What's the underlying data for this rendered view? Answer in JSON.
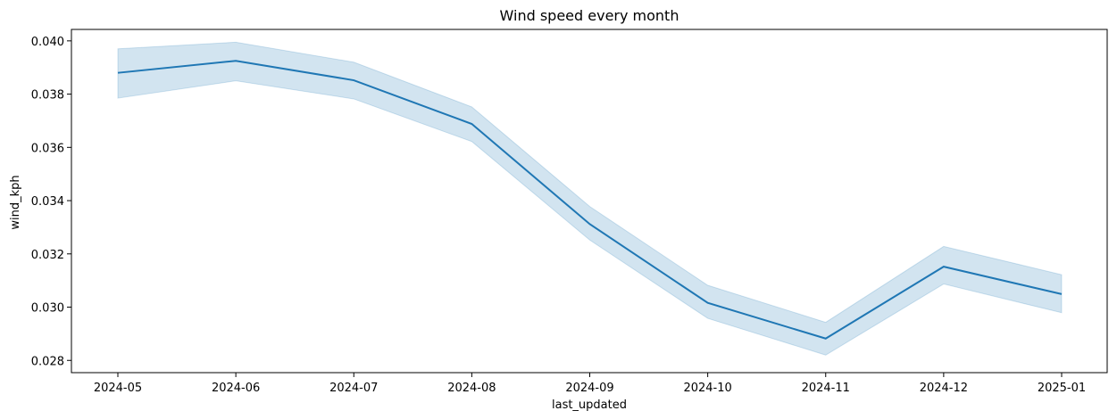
{
  "chart_data": {
    "type": "line",
    "title": "Wind speed every month",
    "xlabel": "last_updated",
    "ylabel": "wind_kph",
    "x": [
      "2024-05",
      "2024-06",
      "2024-07",
      "2024-08",
      "2024-09",
      "2024-10",
      "2024-11",
      "2024-12",
      "2025-01"
    ],
    "series": [
      {
        "values": [
          0.0388,
          0.03925,
          0.03852,
          0.03688,
          0.03312,
          0.03016,
          0.02882,
          0.03152,
          0.03049
        ],
        "ci_low": [
          0.03785,
          0.0385,
          0.03782,
          0.03622,
          0.03252,
          0.02958,
          0.0282,
          0.03087,
          0.02979
        ],
        "ci_high": [
          0.0397,
          0.03995,
          0.0392,
          0.03752,
          0.03378,
          0.03082,
          0.02943,
          0.03228,
          0.03122
        ],
        "color": "#1f77b4"
      }
    ],
    "yticks": [
      "0.028",
      "0.030",
      "0.032",
      "0.034",
      "0.036",
      "0.038",
      "0.040"
    ],
    "ylim": [
      0.02754,
      0.04043
    ],
    "grid": false,
    "legend": "none"
  }
}
